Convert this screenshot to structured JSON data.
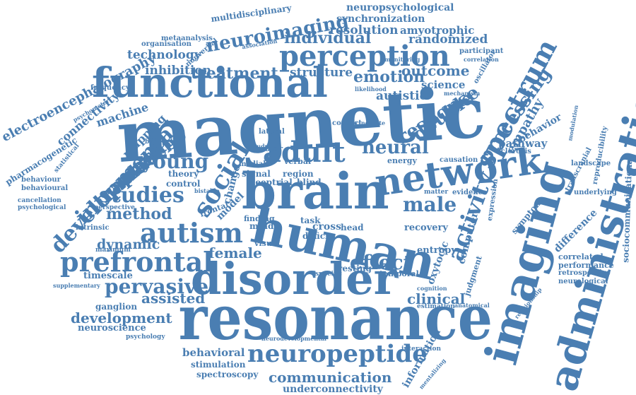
{
  "cloud": {
    "color": "#4a7eb2",
    "words": [
      "magnetic",
      "resonance",
      "functional",
      "human",
      "disorder",
      "brain",
      "imaging",
      "administration",
      "network",
      "perception",
      "autism",
      "adult",
      "prefrontal",
      "neuropeptide",
      "spectrum",
      "social",
      "studies",
      "intranasal",
      "activity",
      "developmental",
      "pervasive",
      "neuroimaging",
      "method",
      "response",
      "processing",
      "young",
      "neural",
      "effect",
      "treatment",
      "male",
      "individual",
      "emotion",
      "placebo",
      "double",
      "communication",
      "development",
      "technology",
      "inhibition",
      "structure",
      "outcome",
      "female",
      "dynamic",
      "clinical",
      "empathy",
      "assisted",
      "randomized",
      "resolution",
      "amyotrophic",
      "behavioral",
      "science",
      "autistic",
      "electroencephalography",
      "connectivity",
      "mapping",
      "machine",
      "pathway",
      "behavior",
      "underconnectivity",
      "neuropsychological",
      "synchronization",
      "multidisciplinary",
      "metaanalysis",
      "nonverbal",
      "organisation",
      "association",
      "pharmacogenetic",
      "psychomotor",
      "frequency",
      "statistical",
      "behaviour",
      "behavioural",
      "cancellation",
      "psychological",
      "intrinsic",
      "maximum",
      "supplementary",
      "timescale",
      "ganglion",
      "neuroscience",
      "psychology",
      "stimulation",
      "spectroscopy",
      "neurodevelopmental",
      "information",
      "interaction",
      "mentalizing",
      "computer",
      "judgment",
      "anatomical",
      "estimation",
      "cognition",
      "temporal",
      "resting",
      "specific",
      "entropy",
      "recovery",
      "signal",
      "sleep",
      "trial",
      "blind",
      "region",
      "verbal",
      "motor",
      "energy",
      "causation",
      "sclerosis",
      "landscape",
      "underlying",
      "correlated",
      "performance",
      "retrospective",
      "neurological",
      "difference",
      "symptom",
      "reproducibility",
      "sociocommunicational",
      "oxytocic",
      "theory",
      "control",
      "model",
      "cross",
      "mind",
      "task",
      "head",
      "deficit",
      "visual",
      "finding",
      "beneficial",
      "perspective",
      "transcranial",
      "participant",
      "oscillator",
      "monitoring",
      "correlation",
      "likelihood",
      "mechanism",
      "conflict",
      "evidence",
      "frontal",
      "lateral",
      "study",
      "medial",
      "change",
      "expression",
      "relationship",
      "modulation",
      "cingulate",
      "bistable",
      "matter"
    ]
  }
}
